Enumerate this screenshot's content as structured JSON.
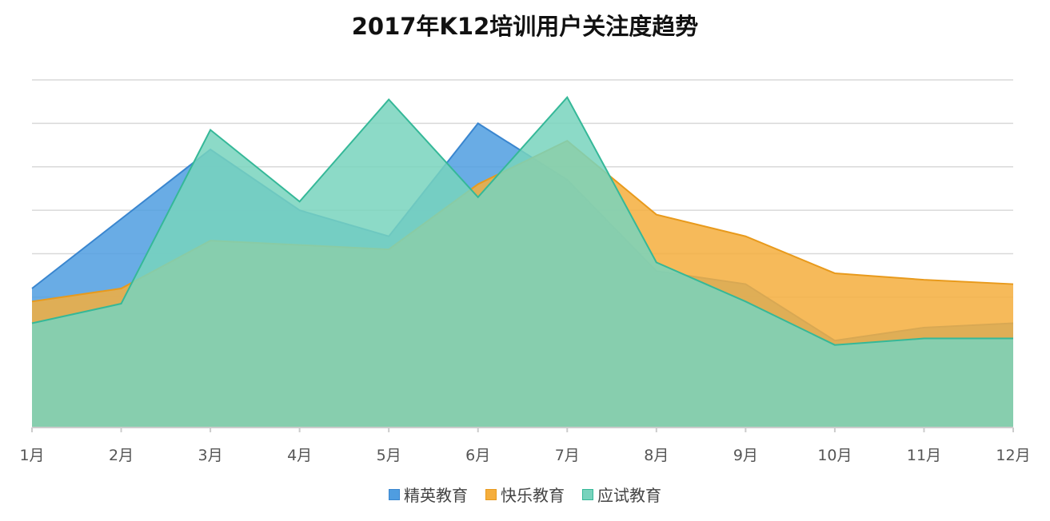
{
  "title": "2017年K12培训用户关注度趋势",
  "colors": {
    "grid": "#d9d9d9",
    "axis": "#cccccc"
  },
  "chart_data": {
    "type": "area",
    "title": "2017年K12培训用户关注度趋势",
    "categories": [
      "1月",
      "2月",
      "3月",
      "4月",
      "5月",
      "6月",
      "7月",
      "8月",
      "9月",
      "10月",
      "11月",
      "12月"
    ],
    "ylim": [
      0,
      80
    ],
    "y_gridlines": [
      10,
      20,
      30,
      40,
      50,
      60,
      70,
      80
    ],
    "y_tick_labels_shown": false,
    "grid": true,
    "legend_position": "bottom-center",
    "series": [
      {
        "name": "精英教育",
        "color": "#4f9de0",
        "stroke": "#3a86cf",
        "values": [
          32,
          48,
          64,
          50,
          44,
          70,
          57,
          36,
          33,
          20,
          23,
          24
        ]
      },
      {
        "name": "快乐教育",
        "color": "#f5ae3d",
        "stroke": "#e89a1c",
        "values": [
          29,
          32,
          43,
          42,
          41,
          56,
          66,
          49,
          44,
          35.5,
          34,
          33
        ]
      },
      {
        "name": "应试教育",
        "color": "#78d3bd",
        "stroke": "#35b898",
        "values": [
          24,
          28.5,
          68.5,
          52,
          75.5,
          53,
          76,
          38,
          29,
          19,
          20.5,
          20.5
        ]
      }
    ]
  }
}
